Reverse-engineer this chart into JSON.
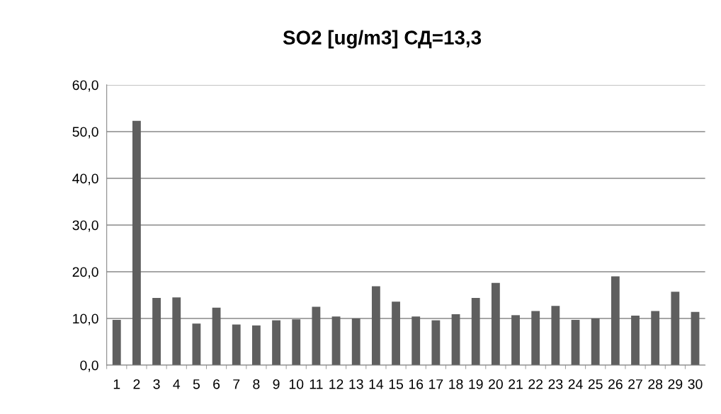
{
  "chart_data": {
    "type": "bar",
    "title": "SO2 [ug/m3] СД=13,3",
    "categories": [
      "1",
      "2",
      "3",
      "4",
      "5",
      "6",
      "7",
      "8",
      "9",
      "10",
      "11",
      "12",
      "13",
      "14",
      "15",
      "16",
      "17",
      "18",
      "19",
      "20",
      "21",
      "22",
      "23",
      "24",
      "25",
      "26",
      "27",
      "28",
      "29",
      "30"
    ],
    "values": [
      9.7,
      52.3,
      14.4,
      14.5,
      8.9,
      12.3,
      8.7,
      8.5,
      9.6,
      9.8,
      12.5,
      10.4,
      10.0,
      16.9,
      13.6,
      10.4,
      9.6,
      10.9,
      14.4,
      17.6,
      10.7,
      11.6,
      12.7,
      9.7,
      10.0,
      19.0,
      10.6,
      11.6,
      15.7,
      11.4
    ],
    "color": "#5f5f5f",
    "ylim": [
      0,
      60
    ],
    "yticks": [
      {
        "value": 0,
        "label": "0,0"
      },
      {
        "value": 10,
        "label": "10,0"
      },
      {
        "value": 20,
        "label": "20,0"
      },
      {
        "value": 30,
        "label": "30,0"
      },
      {
        "value": 40,
        "label": "40,0"
      },
      {
        "value": 50,
        "label": "50,0"
      },
      {
        "value": 60,
        "label": "60,0"
      }
    ],
    "grid": "y",
    "legend": false
  }
}
